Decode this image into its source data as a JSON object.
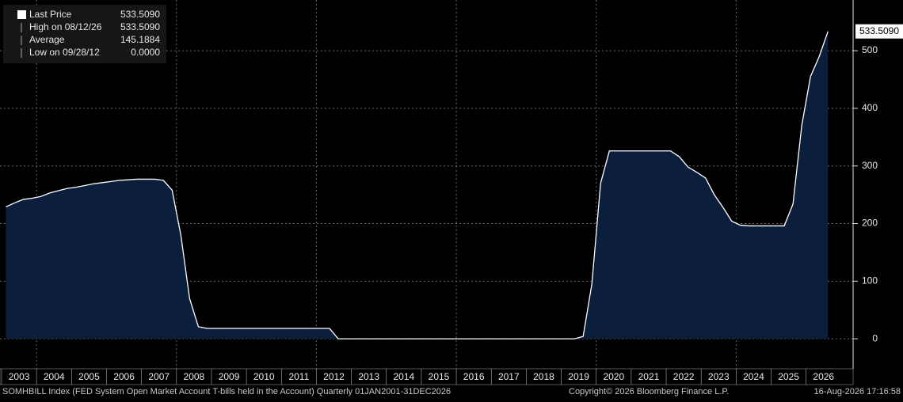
{
  "chart_data": {
    "type": "area",
    "categories": [
      "2003",
      null,
      null,
      null,
      "2004",
      null,
      null,
      null,
      "2005",
      null,
      null,
      null,
      "2006",
      null,
      null,
      null,
      "2007",
      null,
      null,
      null,
      "2008",
      null,
      null,
      null,
      "2009",
      null,
      null,
      null,
      "2010",
      null,
      null,
      null,
      "2011",
      null,
      null,
      null,
      "2012",
      null,
      null,
      null,
      "2013",
      null,
      null,
      null,
      "2014",
      null,
      null,
      null,
      "2015",
      null,
      null,
      null,
      "2016",
      null,
      null,
      null,
      "2017",
      null,
      null,
      null,
      "2018",
      null,
      null,
      null,
      "2019",
      null,
      null,
      null,
      "2020",
      null,
      null,
      null,
      "2021",
      null,
      null,
      null,
      "2022",
      null,
      null,
      null,
      "2023",
      null,
      null,
      null,
      "2024",
      null,
      null,
      null,
      "2025",
      null,
      null,
      null,
      "2026",
      null,
      null
    ],
    "values": [
      229,
      236,
      242,
      244,
      247,
      253,
      257,
      261,
      263,
      266,
      269,
      271,
      273,
      275,
      276,
      277,
      277,
      277,
      275,
      258,
      180,
      70,
      21,
      18,
      18,
      18,
      18,
      18,
      18,
      18,
      18,
      18,
      18,
      18,
      18,
      18,
      18,
      18,
      0,
      0,
      0,
      0,
      0,
      0,
      0,
      0,
      0,
      0,
      0,
      0,
      0,
      0,
      0,
      0,
      0,
      0,
      0,
      0,
      0,
      0,
      0,
      0,
      0,
      0,
      0,
      0,
      4,
      95,
      270,
      326,
      326,
      326,
      326,
      326,
      326,
      326,
      326,
      316,
      298,
      289,
      279,
      250,
      228,
      204,
      197,
      196,
      196,
      196,
      196,
      196,
      234,
      370,
      455,
      490,
      533.509
    ],
    "color": "#0b1f3d",
    "line_color": "#ffffff",
    "ylim": [
      -52,
      588
    ],
    "yticks": [
      0,
      100,
      200,
      300,
      400,
      500
    ],
    "grid": true,
    "legend": [
      {
        "label": "Last Price",
        "value": "533.5090"
      },
      {
        "label": "High on 08/12/26",
        "value": "533.5090"
      },
      {
        "label": "Average",
        "value": "145.1884"
      },
      {
        "label": "Low on 09/28/12",
        "value": "0.0000"
      }
    ],
    "footer": {
      "source": "SOMHBILL Index (FED System Open Market Account T-bills held in the Account) Quarterly 01JAN2001-31DEC2026",
      "copyright": "Copyright© 2026 Bloomberg Finance L.P.",
      "timestamp": "16-Aug-2026 17:16:58"
    }
  }
}
